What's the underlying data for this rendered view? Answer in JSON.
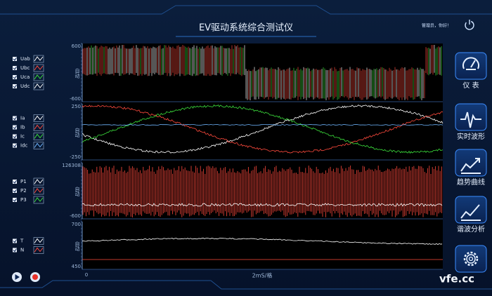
{
  "header": {
    "title": "EV驱动系统综合测试仪",
    "greeting": "管理员，你好！"
  },
  "panels": [
    {
      "signals": [
        {
          "name": "Uab",
          "color": "#ffffff"
        },
        {
          "name": "Ubc",
          "color": "#ff4a3d"
        },
        {
          "name": "Uca",
          "color": "#3ce03c"
        },
        {
          "name": "Udc",
          "color": "#ffffff"
        }
      ],
      "y_max": 600,
      "mode": "自动",
      "y_min": -600
    },
    {
      "signals": [
        {
          "name": "Ia",
          "color": "#ffffff"
        },
        {
          "name": "Ib",
          "color": "#ff4a3d"
        },
        {
          "name": "Ic",
          "color": "#3ce03c"
        },
        {
          "name": "Idc",
          "color": "#6fb6ff"
        }
      ],
      "y_max": 250,
      "mode": "自动",
      "y_min": -250
    },
    {
      "signals": [
        {
          "name": "P1",
          "color": "#ffffff"
        },
        {
          "name": "P2",
          "color": "#ff4a3d"
        },
        {
          "name": "P3",
          "color": "#3ce03c"
        }
      ],
      "y_max": 126308,
      "mode": "自动",
      "y_min": -600
    },
    {
      "signals": [
        {
          "name": "T",
          "color": "#ffffff"
        },
        {
          "name": "N",
          "color": "#ff4a3d"
        }
      ],
      "y_max": 700,
      "mode": "自动",
      "y_min": 450
    }
  ],
  "x_axis": {
    "start": 0,
    "unit": "2mS/格"
  },
  "nav": [
    "仪 表",
    "实时波形",
    "趋势曲线",
    "谐波分析"
  ],
  "watermark": "vfe.cc"
}
